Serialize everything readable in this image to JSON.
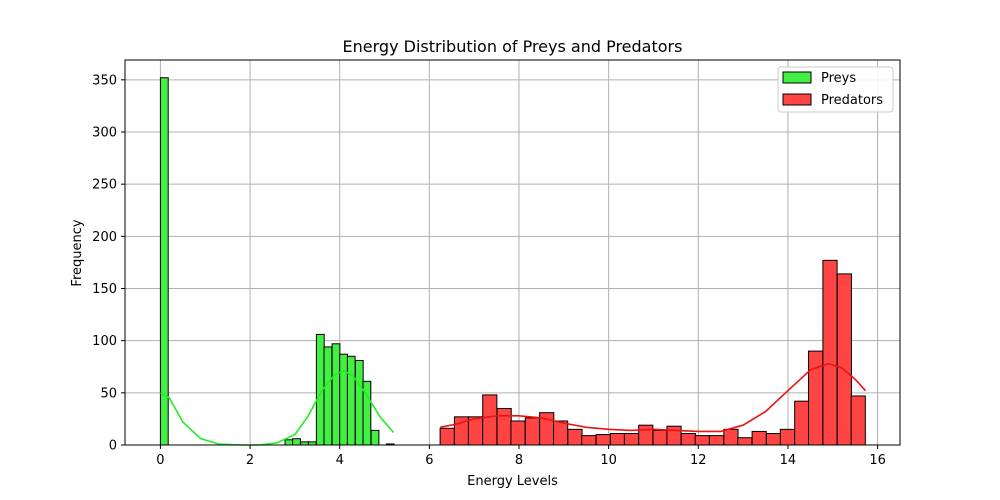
{
  "chart_data": {
    "type": "bar",
    "title": "Energy Distribution of Preys and Predators",
    "xlabel": "Energy Levels",
    "ylabel": "Frequency",
    "xlim": [
      -0.79,
      16.5
    ],
    "ylim": [
      0,
      369
    ],
    "xticks": [
      0,
      2,
      4,
      6,
      8,
      10,
      12,
      14,
      16
    ],
    "yticks": [
      0,
      50,
      100,
      150,
      200,
      250,
      300,
      350
    ],
    "grid": true,
    "legend_position": "top-right",
    "series": [
      {
        "name": "Preys",
        "color": "#44ee44",
        "kde_color": "#22ee22",
        "bin_width": 0.174,
        "bins": [
          {
            "x": 0.0,
            "value": 352
          },
          {
            "x": 2.78,
            "value": 5
          },
          {
            "x": 2.95,
            "value": 6
          },
          {
            "x": 3.13,
            "value": 3
          },
          {
            "x": 3.3,
            "value": 3
          },
          {
            "x": 3.48,
            "value": 106
          },
          {
            "x": 3.65,
            "value": 94
          },
          {
            "x": 3.83,
            "value": 97
          },
          {
            "x": 4.0,
            "value": 87
          },
          {
            "x": 4.17,
            "value": 85
          },
          {
            "x": 4.35,
            "value": 81
          },
          {
            "x": 4.52,
            "value": 61
          },
          {
            "x": 4.7,
            "value": 14
          },
          {
            "x": 5.04,
            "value": 1
          }
        ],
        "kde": [
          [
            0.0,
            50
          ],
          [
            0.2,
            45
          ],
          [
            0.5,
            22
          ],
          [
            0.9,
            6
          ],
          [
            1.3,
            1
          ],
          [
            1.8,
            0
          ],
          [
            2.2,
            0
          ],
          [
            2.6,
            2
          ],
          [
            3.0,
            10
          ],
          [
            3.3,
            28
          ],
          [
            3.6,
            52
          ],
          [
            3.9,
            68
          ],
          [
            4.1,
            71
          ],
          [
            4.3,
            66
          ],
          [
            4.6,
            48
          ],
          [
            4.9,
            27
          ],
          [
            5.2,
            12
          ]
        ]
      },
      {
        "name": "Predators",
        "color": "#ff4444",
        "kde_color": "#ee1111",
        "bin_width": 0.3165,
        "bins": [
          {
            "x": 6.24,
            "value": 16
          },
          {
            "x": 6.56,
            "value": 27
          },
          {
            "x": 6.87,
            "value": 27
          },
          {
            "x": 7.19,
            "value": 48
          },
          {
            "x": 7.51,
            "value": 35
          },
          {
            "x": 7.82,
            "value": 23
          },
          {
            "x": 8.14,
            "value": 26
          },
          {
            "x": 8.46,
            "value": 31
          },
          {
            "x": 8.77,
            "value": 23
          },
          {
            "x": 9.09,
            "value": 15
          },
          {
            "x": 9.4,
            "value": 9
          },
          {
            "x": 9.72,
            "value": 10
          },
          {
            "x": 10.04,
            "value": 11
          },
          {
            "x": 10.35,
            "value": 11
          },
          {
            "x": 10.67,
            "value": 19
          },
          {
            "x": 10.99,
            "value": 14
          },
          {
            "x": 11.3,
            "value": 18
          },
          {
            "x": 11.62,
            "value": 11
          },
          {
            "x": 11.93,
            "value": 9
          },
          {
            "x": 12.25,
            "value": 9
          },
          {
            "x": 12.57,
            "value": 15
          },
          {
            "x": 12.88,
            "value": 7
          },
          {
            "x": 13.2,
            "value": 13
          },
          {
            "x": 13.52,
            "value": 11
          },
          {
            "x": 13.83,
            "value": 15
          },
          {
            "x": 14.15,
            "value": 42
          },
          {
            "x": 14.46,
            "value": 90
          },
          {
            "x": 14.78,
            "value": 177
          },
          {
            "x": 15.1,
            "value": 164
          },
          {
            "x": 15.41,
            "value": 47
          }
        ],
        "kde": [
          [
            6.24,
            17
          ],
          [
            6.6,
            20
          ],
          [
            7.0,
            25
          ],
          [
            7.5,
            28
          ],
          [
            8.0,
            28
          ],
          [
            8.5,
            26
          ],
          [
            9.0,
            21
          ],
          [
            9.5,
            17
          ],
          [
            10.0,
            15
          ],
          [
            10.5,
            14
          ],
          [
            11.0,
            15
          ],
          [
            11.5,
            14
          ],
          [
            12.0,
            13
          ],
          [
            12.5,
            13
          ],
          [
            13.0,
            19
          ],
          [
            13.5,
            32
          ],
          [
            14.0,
            52
          ],
          [
            14.5,
            72
          ],
          [
            14.9,
            78
          ],
          [
            15.2,
            74
          ],
          [
            15.5,
            63
          ],
          [
            15.73,
            52
          ]
        ]
      }
    ]
  }
}
